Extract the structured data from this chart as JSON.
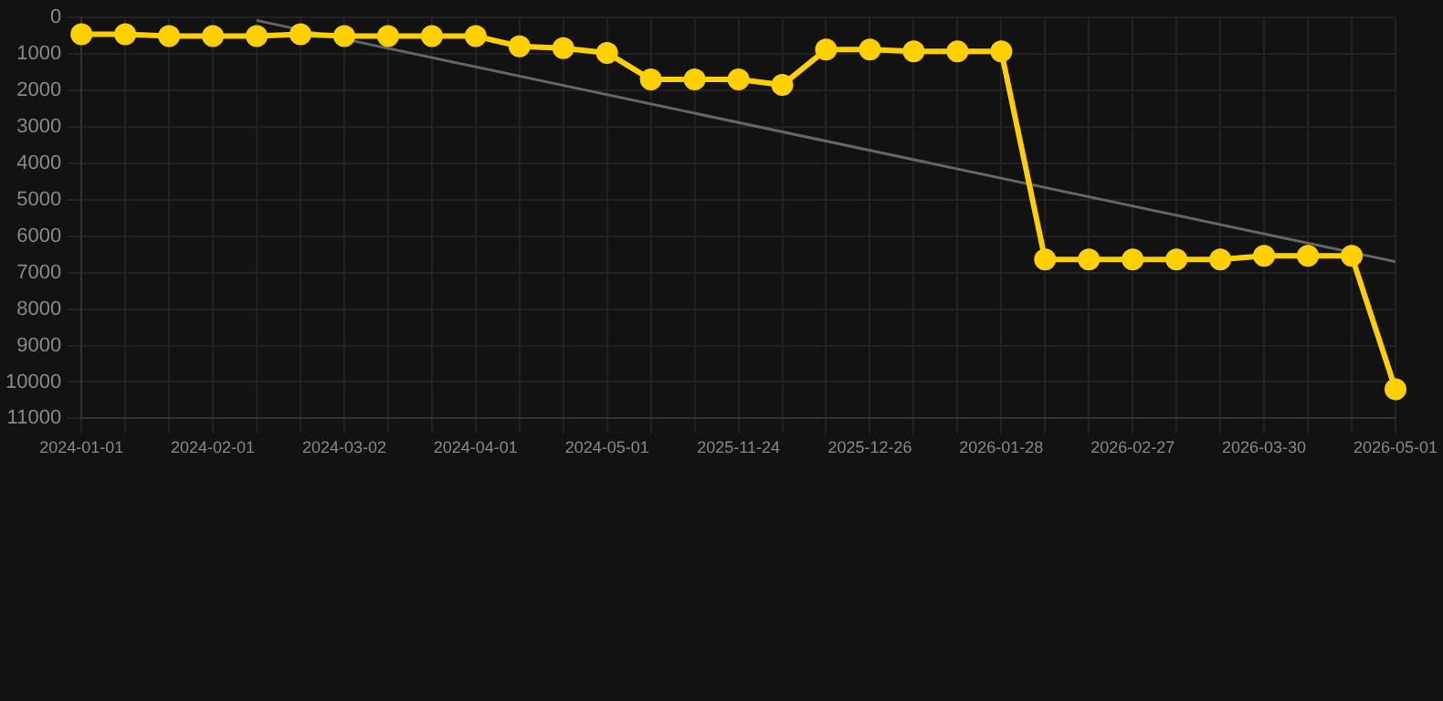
{
  "chart_data": {
    "type": "line",
    "categories": [
      "2024-01-01",
      null,
      null,
      "2024-02-01",
      null,
      null,
      "2024-03-02",
      null,
      null,
      "2024-04-01",
      null,
      null,
      "2024-05-01",
      null,
      null,
      "2025-11-24",
      null,
      null,
      "2025-12-26",
      null,
      null,
      "2026-01-28",
      null,
      null,
      "2026-02-27",
      null,
      null,
      "2026-03-30",
      null,
      null,
      "2026-05-01"
    ],
    "series": [
      {
        "color": "#ffd000",
        "marker": "circle",
        "values": [
          460,
          460,
          510,
          510,
          510,
          460,
          510,
          510,
          510,
          510,
          790,
          840,
          970,
          1700,
          1700,
          1700,
          1850,
          880,
          880,
          930,
          930,
          930,
          6640,
          6640,
          6640,
          6640,
          6640,
          6540,
          6540,
          6540,
          10200
        ]
      },
      {
        "color": "#666666",
        "marker": "none",
        "values": [
          null,
          null,
          null,
          null,
          80,
          null,
          null,
          null,
          null,
          null,
          null,
          null,
          null,
          null,
          null,
          null,
          null,
          null,
          null,
          null,
          null,
          null,
          null,
          null,
          null,
          null,
          null,
          null,
          null,
          null,
          6700
        ]
      }
    ],
    "ylim": [
      11000,
      0
    ],
    "yticks": [
      0,
      1000,
      2000,
      3000,
      4000,
      5000,
      6000,
      7000,
      8000,
      9000,
      10000,
      11000
    ],
    "grid": true,
    "legend": false
  }
}
